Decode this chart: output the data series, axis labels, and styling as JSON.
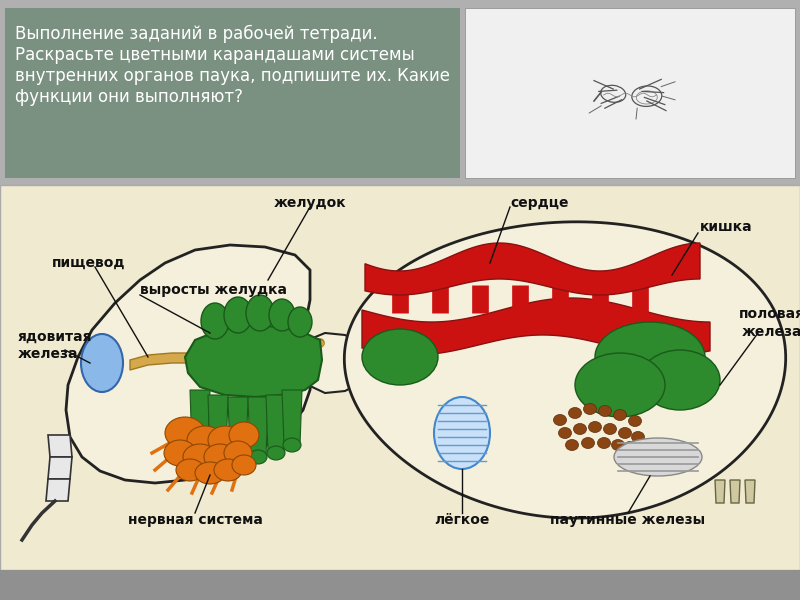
{
  "bg_color": "#b0b0b0",
  "top_left_bg": "#7a9080",
  "top_left_text_color": "#ffffff",
  "diagram_bg": "#f0ead0",
  "body_outline": "#222222",
  "font_size_label": 10,
  "font_size_title": 12,
  "top_text_lines": [
    "Выполнение заданий в рабочей тетради.",
    "Раскрасьте цветными карандашами системы",
    "внутренних органов паука, подпишите их. Какие",
    "функции они выполняют?"
  ]
}
